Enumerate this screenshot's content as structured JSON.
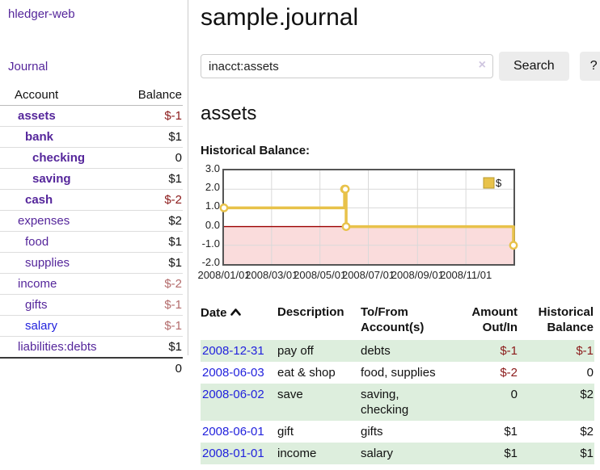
{
  "sidebar": {
    "app_title": "hledger-web",
    "journal_link": "Journal",
    "accounts_table": {
      "account_header": "Account",
      "balance_header": "Balance",
      "rows": [
        {
          "account": "assets",
          "depth": 1,
          "bold": true,
          "balance": "$-1",
          "balance_style": "neg-strong"
        },
        {
          "account": "bank",
          "depth": 2,
          "bold": true,
          "balance": "$1",
          "balance_style": "pos"
        },
        {
          "account": "checking",
          "depth": 3,
          "bold": true,
          "balance": "0",
          "balance_style": "pos"
        },
        {
          "account": "saving",
          "depth": 3,
          "bold": true,
          "balance": "$1",
          "balance_style": "pos"
        },
        {
          "account": "cash",
          "depth": 2,
          "bold": true,
          "balance": "$-2",
          "balance_style": "neg-strong"
        },
        {
          "account": "expenses",
          "depth": 1,
          "bold": false,
          "balance": "$2",
          "balance_style": "pos"
        },
        {
          "account": "food",
          "depth": 2,
          "bold": false,
          "balance": "$1",
          "balance_style": "pos"
        },
        {
          "account": "supplies",
          "depth": 2,
          "bold": false,
          "balance": "$1",
          "balance_style": "pos"
        },
        {
          "account": "income",
          "depth": 1,
          "bold": false,
          "balance": "$-2",
          "balance_style": "neg-muted"
        },
        {
          "account": "gifts",
          "depth": 2,
          "bold": false,
          "balance": "$-1",
          "balance_style": "neg-muted"
        },
        {
          "account": "salary",
          "depth": 2,
          "bold": false,
          "link_color": "blue",
          "balance": "$-1",
          "balance_style": "neg-muted"
        },
        {
          "account": "liabilities:debts",
          "depth": 1,
          "bold": false,
          "balance": "$1",
          "balance_style": "pos"
        }
      ],
      "total": "0"
    }
  },
  "main": {
    "title": "sample.journal",
    "search": {
      "value": "inacct:assets",
      "clear_icon": "×",
      "search_button": "Search",
      "help_button": "?"
    },
    "account_heading": "assets",
    "chart_title": "Historical Balance:"
  },
  "chart_data": {
    "type": "line",
    "step": true,
    "title": "Historical Balance",
    "legend": "$",
    "legend_position": "top-right",
    "grid": true,
    "x_range": [
      "2008-01-01",
      "2008-12-31"
    ],
    "ylim": [
      -2.0,
      3.0
    ],
    "y_ticks": [
      "3.0",
      "2.0",
      "1.0",
      "0.0",
      "-1.0",
      "-2.0"
    ],
    "x_ticks": [
      {
        "date": "2008-01-01",
        "label": "2008/01/01"
      },
      {
        "date": "2008-03-01",
        "label": "2008/03/01"
      },
      {
        "date": "2008-05-01",
        "label": "2008/05/01"
      },
      {
        "date": "2008-07-01",
        "label": "2008/07/01"
      },
      {
        "date": "2008-09-01",
        "label": "2008/09/01"
      },
      {
        "date": "2008-11-01",
        "label": "2008/11/01"
      }
    ],
    "series": [
      {
        "name": "$",
        "points": [
          {
            "x": "2008-01-01",
            "y": 1
          },
          {
            "x": "2008-06-01",
            "y": 2
          },
          {
            "x": "2008-06-02",
            "y": 2
          },
          {
            "x": "2008-06-03",
            "y": 0
          },
          {
            "x": "2008-12-31",
            "y": -1
          }
        ]
      }
    ],
    "colors": {
      "line": "#e8c24a",
      "marker_fill": "#ffffff",
      "negative_region_fill": "#fadcdc",
      "zero_line": "#9b0000",
      "grid": "#d9d9d9",
      "border": "#555555",
      "legend_box_border": "#b89b2e"
    }
  },
  "register": {
    "headers": {
      "date": "Date",
      "description": "Description",
      "to_from": "To/From Account(s)",
      "amount": "Amount Out/In",
      "balance": "Historical Balance"
    },
    "rows": [
      {
        "date": "2008-12-31",
        "description": "pay off",
        "to_from": "debts",
        "amount": "$-1",
        "amount_negative": true,
        "balance": "$-1",
        "balance_negative": true,
        "shaded": true
      },
      {
        "date": "2008-06-03",
        "description": "eat & shop",
        "to_from": "food, supplies",
        "amount": "$-2",
        "amount_negative": true,
        "balance": "0",
        "balance_negative": false,
        "shaded": false
      },
      {
        "date": "2008-06-02",
        "description": "save",
        "to_from": "saving,\nchecking",
        "amount": "0",
        "amount_negative": false,
        "balance": "$2",
        "balance_negative": false,
        "shaded": true
      },
      {
        "date": "2008-06-01",
        "description": "gift",
        "to_from": "gifts",
        "amount": "$1",
        "amount_negative": false,
        "balance": "$2",
        "balance_negative": false,
        "shaded": false
      },
      {
        "date": "2008-01-01",
        "description": "income",
        "to_from": "salary",
        "amount": "$1",
        "amount_negative": false,
        "balance": "$1",
        "balance_negative": false,
        "shaded": true
      }
    ]
  }
}
